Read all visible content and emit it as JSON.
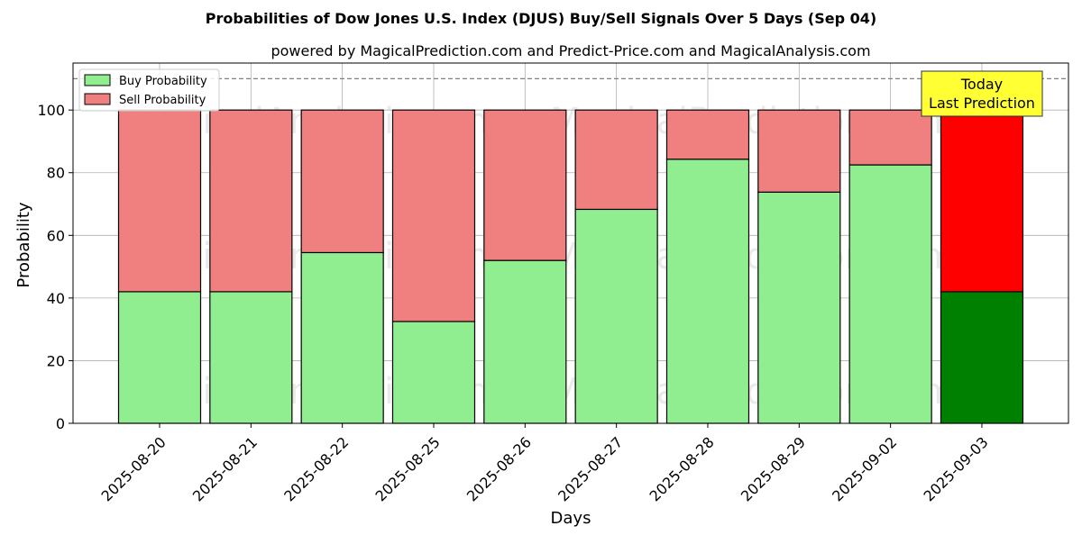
{
  "chart_data": {
    "type": "bar",
    "title": "Probabilities of Dow Jones U.S. Index (DJUS) Buy/Sell Signals Over 5 Days (Sep 04)",
    "subtitle": "powered by MagicalPrediction.com and Predict-Price.com and MagicalAnalysis.com",
    "xlabel": "Days",
    "ylabel": "Probability",
    "ylim": [
      0,
      115
    ],
    "yticks": [
      0,
      20,
      40,
      60,
      80,
      100
    ],
    "reference_line": 110,
    "grid": true,
    "legend_position": "top-left",
    "categories": [
      "2025-08-20",
      "2025-08-21",
      "2025-08-22",
      "2025-08-25",
      "2025-08-26",
      "2025-08-27",
      "2025-08-28",
      "2025-08-29",
      "2025-09-02",
      "2025-09-03"
    ],
    "series": [
      {
        "name": "Buy Probability",
        "color": "#90ee90",
        "highlight_color": "#008000",
        "values": [
          42,
          42,
          54.5,
          32.5,
          52,
          68.3,
          84.3,
          73.8,
          82.5,
          42
        ]
      },
      {
        "name": "Sell Probability",
        "color": "#f08080",
        "highlight_color": "#ff0000",
        "values": [
          58,
          58,
          45.5,
          67.5,
          48,
          31.7,
          15.7,
          26.2,
          17.5,
          58
        ]
      }
    ],
    "highlight_index": 9,
    "annotation": {
      "lines": [
        "Today",
        "Last Prediction"
      ],
      "background": "#ffff33"
    },
    "watermarks": [
      "MagicalAnalysis.com",
      "MagicalPrediction.com"
    ]
  }
}
